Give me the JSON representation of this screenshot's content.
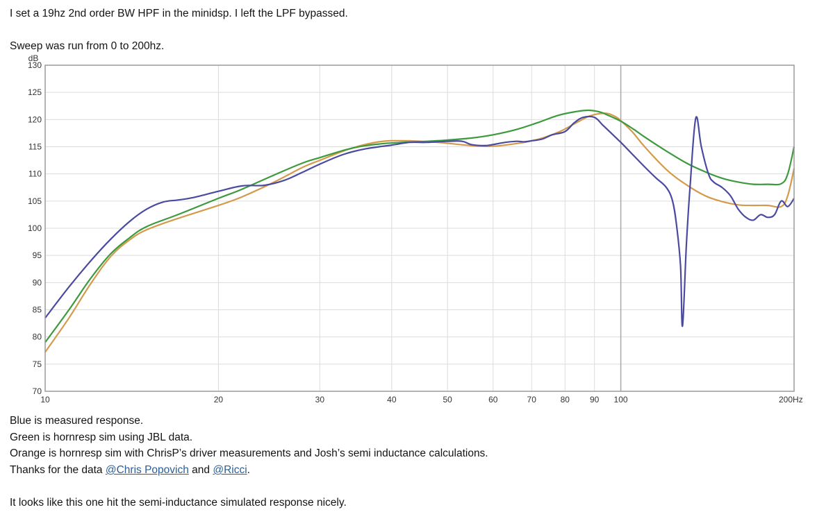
{
  "post": {
    "intro": "I set a 19hz 2nd order BW HPF in the minidsp. I left the LPF bypassed.",
    "sweep": "Sweep was run from 0 to 200hz.",
    "caption_blue": "Blue is measured response.",
    "caption_green": "Green is hornresp sim using JBL data.",
    "caption_orange": "Orange is hornresp sim with ChrisP’s driver measurements and Josh’s semi inductance calculations.",
    "thanks_prefix": "Thanks for the data ",
    "mention_1": "@Chris Popovich",
    "thanks_mid": " and ",
    "mention_2": "@Ricci",
    "thanks_suffix": ".",
    "conclusion": "It looks like this one hit the semi-inductance simulated response nicely."
  },
  "chart_data": {
    "type": "line",
    "title": "",
    "xlabel": "",
    "ylabel": "dB",
    "x_scale": "log",
    "xlim": [
      10,
      200
    ],
    "ylim": [
      70,
      130
    ],
    "x_ticks": [
      10,
      20,
      30,
      40,
      50,
      60,
      70,
      80,
      90,
      100,
      200
    ],
    "x_tick_labels": [
      "10",
      "20",
      "30",
      "40",
      "50",
      "60",
      "70",
      "80",
      "90",
      "100",
      "200Hz"
    ],
    "y_ticks": [
      70,
      75,
      80,
      85,
      90,
      95,
      100,
      105,
      110,
      115,
      120,
      125,
      130
    ],
    "y_tick_labels": [
      "70",
      "75",
      "80",
      "85",
      "90",
      "95",
      "100",
      "105",
      "110",
      "115",
      "120",
      "125",
      "130"
    ],
    "grid": true,
    "colors": {
      "blue": "#4a4aa0",
      "green": "#3c9a3c",
      "orange": "#d49a4c"
    },
    "series": [
      {
        "color": "blue",
        "x": [
          10,
          11,
          12,
          13,
          14,
          15,
          16,
          17,
          18,
          20,
          22,
          24,
          26,
          28,
          30,
          33,
          36,
          40,
          43,
          46,
          50,
          53,
          55,
          58,
          60,
          63,
          66,
          68,
          70,
          73,
          76,
          80,
          83,
          86,
          90,
          93,
          96,
          100,
          105,
          110,
          115,
          120,
          123,
          125,
          127,
          128,
          130,
          132,
          135,
          138,
          142,
          145,
          150,
          155,
          160,
          165,
          170,
          175,
          180,
          185,
          190,
          195,
          200
        ],
        "y": [
          83.5,
          89.2,
          94.0,
          98.0,
          101.2,
          103.5,
          104.8,
          105.2,
          105.6,
          106.8,
          107.8,
          107.9,
          108.8,
          110.3,
          111.8,
          113.6,
          114.6,
          115.3,
          115.8,
          115.8,
          116.0,
          116.0,
          115.4,
          115.2,
          115.4,
          115.8,
          116.0,
          115.9,
          116.1,
          116.4,
          117.2,
          117.8,
          119.4,
          120.4,
          120.4,
          119.0,
          117.6,
          115.8,
          113.5,
          111.3,
          109.3,
          107.5,
          105.0,
          100.5,
          93.0,
          82.0,
          97.0,
          108.0,
          120.3,
          115.0,
          110.0,
          108.5,
          107.5,
          106.0,
          103.5,
          102.0,
          101.5,
          102.5,
          102.0,
          102.5,
          105.0,
          104.0,
          105.5
        ]
      },
      {
        "color": "green",
        "x": [
          10,
          11,
          12,
          13,
          14,
          15,
          17,
          20,
          22,
          25,
          28,
          30,
          34,
          38,
          42,
          48,
          55,
          60,
          66,
          72,
          78,
          84,
          88,
          92,
          95,
          100,
          105,
          110,
          120,
          130,
          140,
          150,
          160,
          170,
          180,
          190,
          195,
          200
        ],
        "y": [
          79.0,
          85.0,
          90.8,
          95.3,
          98.2,
          100.3,
          102.5,
          105.5,
          107.2,
          109.8,
          112.0,
          113.0,
          114.7,
          115.5,
          115.8,
          116.1,
          116.6,
          117.2,
          118.2,
          119.5,
          120.8,
          121.5,
          121.7,
          121.4,
          120.8,
          119.7,
          118.3,
          116.8,
          114.2,
          112.0,
          110.4,
          109.2,
          108.5,
          108.1,
          108.1,
          108.2,
          110.0,
          115.0
        ]
      },
      {
        "color": "orange",
        "x": [
          10,
          11,
          12,
          13,
          14,
          15,
          17,
          20,
          22,
          25,
          28,
          30,
          34,
          38,
          42,
          48,
          55,
          60,
          66,
          72,
          78,
          84,
          88,
          92,
          95,
          98,
          100,
          105,
          110,
          120,
          130,
          140,
          150,
          160,
          170,
          180,
          190,
          195,
          200
        ],
        "y": [
          77.2,
          83.5,
          89.8,
          94.8,
          97.8,
          99.7,
          101.8,
          104.2,
          105.8,
          108.5,
          111.2,
          112.5,
          114.7,
          115.9,
          116.1,
          115.8,
          115.2,
          115.1,
          115.6,
          116.4,
          117.7,
          119.5,
          120.6,
          121.1,
          121.1,
          120.5,
          119.8,
          117.6,
          115.0,
          110.8,
          108.0,
          106.0,
          104.9,
          104.3,
          104.2,
          104.2,
          104.0,
          106.0,
          111.0
        ]
      }
    ]
  }
}
